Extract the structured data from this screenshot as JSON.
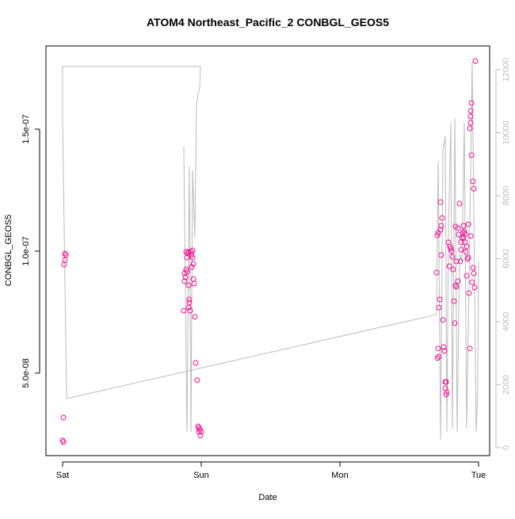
{
  "chart_data": {
    "type": "scatter",
    "title": "ATOM4 Northeast_Pacific_2 CONBGL_GEOS5",
    "xlabel": "Date",
    "ylabel": "CONBGL_GEOS5",
    "xlim": [
      -0.12,
      3.08
    ],
    "xticks": [
      {
        "value": 0,
        "label": "Sat"
      },
      {
        "value": 1,
        "label": "Sun"
      },
      {
        "value": 2,
        "label": "Mon"
      },
      {
        "value": 3,
        "label": "Tue"
      }
    ],
    "ylim": [
      1.62e-08,
      1.841e-07
    ],
    "yticks": [
      {
        "value": 5e-08,
        "label": "5.0e-08"
      },
      {
        "value": 1e-07,
        "label": "1.0e-07"
      },
      {
        "value": 1.5e-07,
        "label": "1.5e-07"
      }
    ],
    "y2lim": [
      -252,
      12755
    ],
    "y2ticks": [
      0,
      2000,
      4000,
      6000,
      8000,
      10000,
      12000
    ],
    "y2color": "#bbbbbb",
    "series": [
      {
        "type": "line",
        "axis": "y2",
        "color": "#bbbbbb",
        "x": [
          0.874,
          0.897,
          0.914,
          0.926,
          0.937,
          0.954,
          0.966,
          0.977,
          0.989,
          0.994,
          0,
          0,
          0.029,
          2.697,
          2.709,
          2.726,
          2.743,
          2.76,
          2.771,
          2.783,
          2.8,
          2.811,
          2.829,
          2.846,
          2.863,
          2.88,
          2.897,
          2.914,
          2.931,
          2.954,
          2.983,
          2.994,
          3.0
        ],
        "values": [
          9561,
          503,
          8932,
          503,
          8806,
          6667,
          10945,
          11196,
          11448,
          12102,
          12102,
          10441,
          1560,
          4227,
          9108,
          252,
          9435,
          9888,
          503,
          6919,
          10316,
          629,
          10441,
          503,
          6164,
          5913,
          10316,
          629,
          5158,
          12253,
          503,
          1761,
          5913
        ]
      },
      {
        "type": "scatter",
        "color": "#f0108f",
        "x": [
          0.017,
          0.023,
          0.017,
          0.011,
          0.006,
          0,
          0.006,
          0.874,
          0.88,
          0.886,
          0.88,
          0.891,
          0.897,
          0.903,
          0.891,
          0.909,
          0.897,
          0.909,
          0.914,
          0.914,
          0.909,
          0.92,
          0.926,
          0.931,
          0.937,
          0.937,
          0.943,
          0.931,
          0.943,
          0.949,
          0.954,
          0.96,
          0.971,
          0.977,
          0.983,
          0.989,
          0.983,
          0.994,
          1.0,
          2.697,
          2.703,
          2.709,
          2.714,
          2.72,
          2.709,
          2.714,
          2.703,
          2.726,
          2.731,
          2.726,
          2.731,
          2.737,
          2.743,
          2.749,
          2.754,
          2.76,
          2.766,
          2.76,
          2.771,
          2.766,
          2.783,
          2.789,
          2.794,
          2.8,
          2.806,
          2.811,
          2.817,
          2.823,
          2.829,
          2.834,
          2.834,
          2.84,
          2.851,
          2.857,
          2.863,
          2.869,
          2.874,
          2.88,
          2.886,
          2.891,
          2.897,
          2.903,
          2.909,
          2.914,
          2.92,
          2.926,
          2.931,
          2.937,
          2.943,
          2.949,
          2.943,
          2.943,
          2.937,
          2.943,
          2.949,
          2.96,
          2.966,
          2.96,
          2.966,
          2.971,
          2.977,
          2.954,
          2.926,
          2.914,
          2.903,
          2.891,
          2.874,
          2.851,
          2.84
        ],
        "values": [
          9.9e-08,
          9.84e-08,
          9.64e-08,
          9.45e-08,
          3.18e-08,
          2.24e-08,
          2.18e-08,
          7.56e-08,
          8.77e-08,
          8.93e-08,
          9.09e-08,
          9.25e-08,
          9.74e-08,
          9.9e-08,
          9.97e-08,
          9.97e-08,
          9.16e-08,
          8.6e-08,
          7.89e-08,
          8.02e-08,
          7.69e-08,
          7.56e-08,
          9.97e-08,
          9.84e-08,
          1.003e-07,
          9.74e-08,
          9.48e-08,
          9.35e-08,
          8.86e-08,
          8.67e-08,
          7.31e-08,
          5.42e-08,
          4.71e-08,
          2.82e-08,
          2.76e-08,
          2.69e-08,
          2.6e-08,
          2.44e-08,
          2.6e-08,
          9.12e-08,
          1.065e-07,
          1.075e-07,
          7.69e-08,
          8.02e-08,
          6.01e-08,
          5.68e-08,
          5.62e-08,
          1.201e-07,
          1.104e-07,
          1.088e-07,
          9.84e-08,
          1.136e-07,
          7.18e-08,
          6.07e-08,
          5.91e-08,
          4.64e-08,
          4.64e-08,
          4.38e-08,
          4.22e-08,
          4.12e-08,
          1.036e-07,
          9.38e-08,
          1.019e-07,
          1.01e-07,
          1e-07,
          9.77e-08,
          9.25e-08,
          7.95e-08,
          7.05e-08,
          1.101e-07,
          8.6e-08,
          8.54e-08,
          1.094e-07,
          1.068e-07,
          1.195e-07,
          9.58e-08,
          1.036e-07,
          1.055e-07,
          1.075e-07,
          1.055e-07,
          1.081e-07,
          1.036e-07,
          9.97e-08,
          8.99e-08,
          9.68e-08,
          9.74e-08,
          8.28e-08,
          6.01e-08,
          1.062e-07,
          1.607e-07,
          1.575e-07,
          1.552e-07,
          1.503e-07,
          1.526e-07,
          1.393e-07,
          1.286e-07,
          1.256e-07,
          9.32e-08,
          9.09e-08,
          8.51e-08,
          1.779e-07,
          8.73e-08,
          1.11e-07,
          1.019e-07,
          1.071e-07,
          1.104e-07,
          1.006e-07,
          8.77e-08,
          9.58e-08
        ]
      }
    ]
  }
}
